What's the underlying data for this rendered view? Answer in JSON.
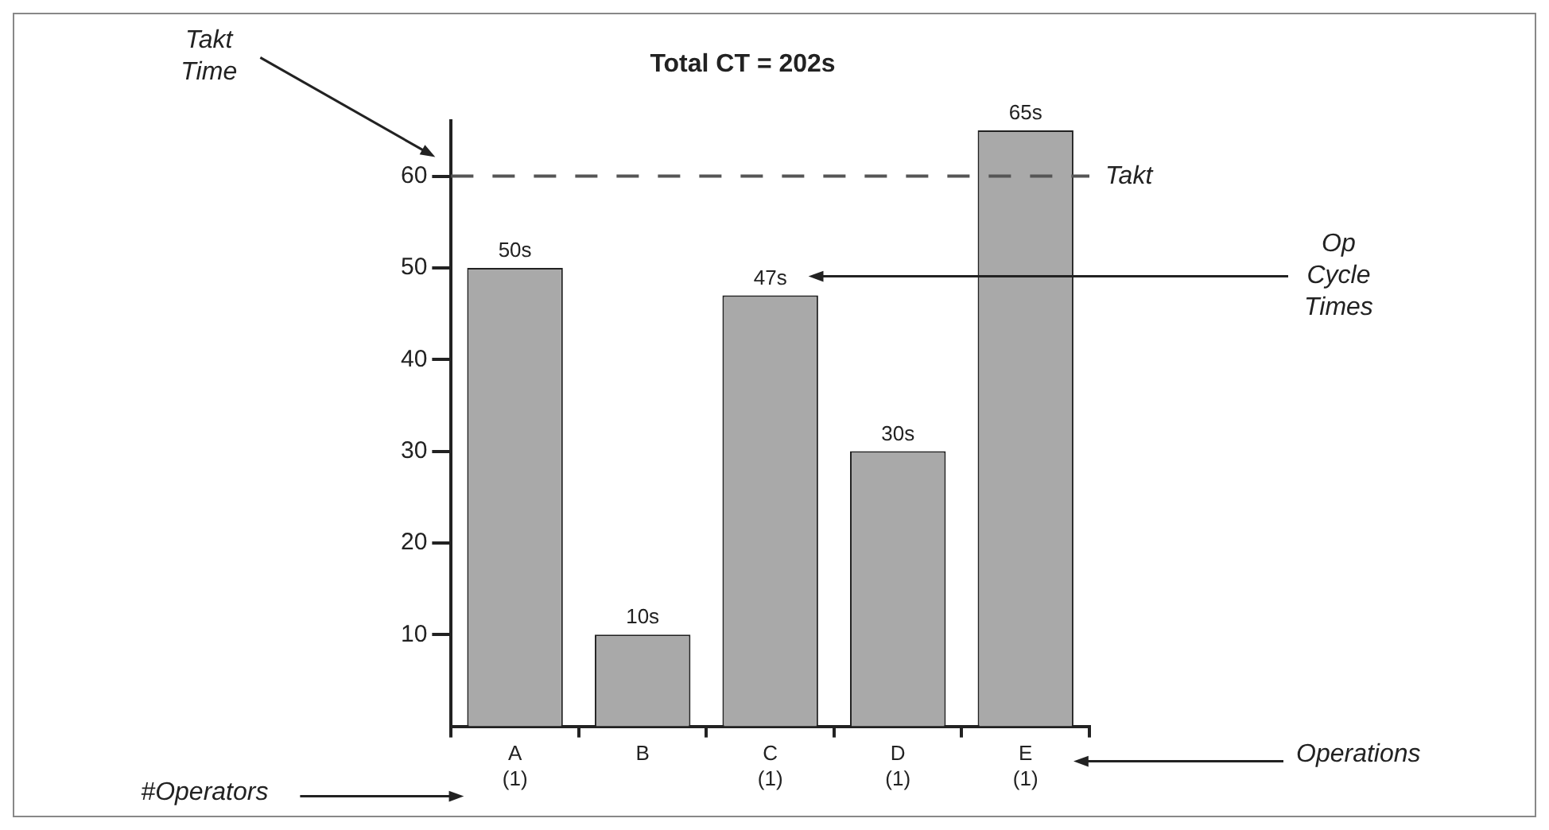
{
  "chart_data": {
    "type": "bar",
    "title": "Total CT = 202s",
    "categories": [
      "A\n(1)",
      "B",
      "C\n(1)",
      "D\n(1)",
      "E\n(1)"
    ],
    "values": [
      50,
      10,
      47,
      30,
      65
    ],
    "value_labels": [
      "50s",
      "10s",
      "47s",
      "30s",
      "65s"
    ],
    "color": "#a9a9a9",
    "ylim": [
      0,
      66
    ],
    "yticks": [
      10,
      20,
      30,
      40,
      50,
      60
    ],
    "ref_lines": [
      {
        "axis": "y",
        "value": 60,
        "label": "Takt",
        "color": "#555555",
        "line_style": "dashed"
      }
    ],
    "annotations": [
      "Takt\nTime",
      "Op\nCycle\nTimes",
      "Operations",
      "#Operators"
    ]
  }
}
